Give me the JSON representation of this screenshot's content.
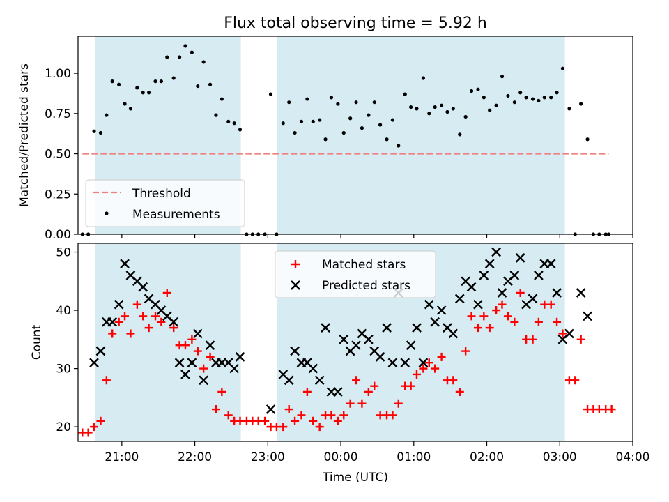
{
  "chart_data": [
    {
      "type": "scatter",
      "title": "Flux total observing time = 5.92 h",
      "xlabel": "",
      "ylabel": "Matched/Predicted stars",
      "x_unit": "hours since 00:00 UTC (negative = previous day)",
      "xlim": [
        -3.6,
        4.0
      ],
      "ylim": [
        0,
        1.23
      ],
      "yticks": [
        0.0,
        0.25,
        0.5,
        0.75,
        1.0
      ],
      "yticklabels": [
        "0.00",
        "0.25",
        "0.50",
        "0.75",
        "1.00"
      ],
      "shaded_intervals": [
        [
          -3.37,
          -1.37
        ],
        [
          -0.87,
          3.07
        ]
      ],
      "legend_placement": "lower-left",
      "threshold": {
        "name": "Threshold",
        "value": 0.5,
        "x_range": [
          -3.54,
          3.67
        ],
        "color": "#f08080"
      },
      "series": [
        {
          "name": "Measurements",
          "color": "#000000",
          "marker": "dot",
          "points": [
            [
              -3.54,
              0.0
            ],
            [
              -3.46,
              0.0
            ],
            [
              -3.38,
              0.64
            ],
            [
              -3.29,
              0.63
            ],
            [
              -3.21,
              0.74
            ],
            [
              -3.13,
              0.95
            ],
            [
              -3.04,
              0.93
            ],
            [
              -2.96,
              0.81
            ],
            [
              -2.88,
              0.78
            ],
            [
              -2.79,
              0.91
            ],
            [
              -2.71,
              0.88
            ],
            [
              -2.63,
              0.88
            ],
            [
              -2.54,
              0.95
            ],
            [
              -2.46,
              0.95
            ],
            [
              -2.38,
              1.1
            ],
            [
              -2.29,
              0.97
            ],
            [
              -2.21,
              1.1
            ],
            [
              -2.13,
              1.17
            ],
            [
              -2.04,
              1.13
            ],
            [
              -1.96,
              0.92
            ],
            [
              -1.88,
              1.07
            ],
            [
              -1.79,
              0.93
            ],
            [
              -1.71,
              0.74
            ],
            [
              -1.63,
              0.84
            ],
            [
              -1.54,
              0.7
            ],
            [
              -1.46,
              0.69
            ],
            [
              -1.38,
              0.65
            ],
            [
              -1.29,
              0.0
            ],
            [
              -1.21,
              0.0
            ],
            [
              -1.13,
              0.0
            ],
            [
              -1.04,
              0.0
            ],
            [
              -0.96,
              0.87
            ],
            [
              -0.88,
              0.0
            ],
            [
              -0.79,
              0.69
            ],
            [
              -0.71,
              0.82
            ],
            [
              -0.63,
              0.63
            ],
            [
              -0.54,
              0.7
            ],
            [
              -0.46,
              0.84
            ],
            [
              -0.38,
              0.7
            ],
            [
              -0.29,
              0.71
            ],
            [
              -0.21,
              0.59
            ],
            [
              -0.13,
              0.85
            ],
            [
              -0.04,
              0.81
            ],
            [
              0.04,
              0.63
            ],
            [
              0.13,
              0.72
            ],
            [
              0.21,
              0.82
            ],
            [
              0.29,
              0.66
            ],
            [
              0.38,
              0.74
            ],
            [
              0.46,
              0.82
            ],
            [
              0.54,
              0.68
            ],
            [
              0.63,
              0.59
            ],
            [
              0.71,
              0.71
            ],
            [
              0.79,
              0.55
            ],
            [
              0.88,
              0.87
            ],
            [
              0.96,
              0.79
            ],
            [
              1.04,
              0.78
            ],
            [
              1.13,
              0.97
            ],
            [
              1.21,
              0.75
            ],
            [
              1.29,
              0.79
            ],
            [
              1.38,
              0.8
            ],
            [
              1.46,
              0.76
            ],
            [
              1.54,
              0.78
            ],
            [
              1.63,
              0.62
            ],
            [
              1.71,
              0.73
            ],
            [
              1.79,
              0.89
            ],
            [
              1.88,
              0.9
            ],
            [
              1.96,
              0.85
            ],
            [
              2.04,
              0.77
            ],
            [
              2.13,
              0.8
            ],
            [
              2.21,
              0.98
            ],
            [
              2.29,
              0.86
            ],
            [
              2.38,
              0.82
            ],
            [
              2.46,
              0.88
            ],
            [
              2.54,
              0.85
            ],
            [
              2.63,
              0.84
            ],
            [
              2.71,
              0.83
            ],
            [
              2.79,
              0.85
            ],
            [
              2.88,
              0.85
            ],
            [
              2.96,
              0.88
            ],
            [
              3.04,
              1.03
            ],
            [
              3.13,
              0.78
            ],
            [
              3.21,
              0.0
            ],
            [
              3.29,
              0.81
            ],
            [
              3.38,
              0.59
            ],
            [
              3.46,
              0.0
            ],
            [
              3.54,
              0.0
            ],
            [
              3.63,
              0.0
            ],
            [
              3.67,
              0.0
            ]
          ]
        }
      ]
    },
    {
      "type": "scatter",
      "title": "",
      "xlabel": "Time (UTC)",
      "ylabel": "Count",
      "x_unit": "hours since 00:00 UTC (negative = previous day)",
      "xlim": [
        -3.6,
        4.0
      ],
      "ylim": [
        17.5,
        51.5
      ],
      "xticks": [
        -3,
        -2,
        -1,
        0,
        1,
        2,
        3,
        4
      ],
      "xticklabels": [
        "21:00",
        "22:00",
        "23:00",
        "00:00",
        "01:00",
        "02:00",
        "03:00",
        "04:00"
      ],
      "yticks": [
        20,
        30,
        40,
        50
      ],
      "yticklabels": [
        "20",
        "30",
        "40",
        "50"
      ],
      "shaded_intervals": [
        [
          -3.37,
          -1.37
        ],
        [
          -0.87,
          3.07
        ]
      ],
      "legend_placement": "top-center",
      "series": [
        {
          "name": "Matched stars",
          "color": "#ff0000",
          "marker": "plus",
          "points": [
            [
              -3.54,
              19
            ],
            [
              -3.46,
              19
            ],
            [
              -3.38,
              20
            ],
            [
              -3.29,
              21
            ],
            [
              -3.21,
              28
            ],
            [
              -3.13,
              36
            ],
            [
              -3.04,
              38
            ],
            [
              -2.96,
              39
            ],
            [
              -2.88,
              36
            ],
            [
              -2.79,
              41
            ],
            [
              -2.71,
              39
            ],
            [
              -2.63,
              37
            ],
            [
              -2.54,
              39
            ],
            [
              -2.46,
              38
            ],
            [
              -2.38,
              43
            ],
            [
              -2.29,
              37
            ],
            [
              -2.21,
              34
            ],
            [
              -2.13,
              34
            ],
            [
              -2.04,
              35
            ],
            [
              -1.96,
              33
            ],
            [
              -1.88,
              30
            ],
            [
              -1.79,
              32
            ],
            [
              -1.71,
              23
            ],
            [
              -1.63,
              26
            ],
            [
              -1.54,
              22
            ],
            [
              -1.46,
              21
            ],
            [
              -1.38,
              21
            ],
            [
              -1.29,
              21
            ],
            [
              -1.21,
              21
            ],
            [
              -1.13,
              21
            ],
            [
              -1.04,
              21
            ],
            [
              -0.96,
              20
            ],
            [
              -0.88,
              20
            ],
            [
              -0.79,
              20
            ],
            [
              -0.71,
              23
            ],
            [
              -0.63,
              21
            ],
            [
              -0.54,
              22
            ],
            [
              -0.46,
              26
            ],
            [
              -0.38,
              21
            ],
            [
              -0.29,
              20
            ],
            [
              -0.21,
              22
            ],
            [
              -0.13,
              22
            ],
            [
              -0.04,
              21
            ],
            [
              0.04,
              22
            ],
            [
              0.13,
              24
            ],
            [
              0.21,
              28
            ],
            [
              0.29,
              24
            ],
            [
              0.38,
              26
            ],
            [
              0.46,
              27
            ],
            [
              0.54,
              22
            ],
            [
              0.63,
              22
            ],
            [
              0.71,
              22
            ],
            [
              0.79,
              24
            ],
            [
              0.88,
              27
            ],
            [
              0.96,
              27
            ],
            [
              1.04,
              29
            ],
            [
              1.13,
              30
            ],
            [
              1.21,
              31
            ],
            [
              1.29,
              30
            ],
            [
              1.38,
              32
            ],
            [
              1.46,
              28
            ],
            [
              1.54,
              28
            ],
            [
              1.63,
              26
            ],
            [
              1.71,
              33
            ],
            [
              1.79,
              39
            ],
            [
              1.88,
              37
            ],
            [
              1.96,
              39
            ],
            [
              2.04,
              37
            ],
            [
              2.13,
              40
            ],
            [
              2.21,
              41
            ],
            [
              2.29,
              39
            ],
            [
              2.38,
              38
            ],
            [
              2.46,
              43
            ],
            [
              2.54,
              35
            ],
            [
              2.63,
              35
            ],
            [
              2.71,
              38
            ],
            [
              2.79,
              41
            ],
            [
              2.88,
              41
            ],
            [
              2.96,
              38
            ],
            [
              3.04,
              36
            ],
            [
              3.13,
              28
            ],
            [
              3.21,
              28
            ],
            [
              3.29,
              35
            ],
            [
              3.38,
              23
            ],
            [
              3.46,
              23
            ],
            [
              3.54,
              23
            ],
            [
              3.63,
              23
            ],
            [
              3.71,
              23
            ]
          ]
        },
        {
          "name": "Predicted stars",
          "color": "#000000",
          "marker": "x",
          "points": [
            [
              -3.38,
              31
            ],
            [
              -3.29,
              33
            ],
            [
              -3.21,
              38
            ],
            [
              -3.13,
              38
            ],
            [
              -3.04,
              41
            ],
            [
              -2.96,
              48
            ],
            [
              -2.88,
              46
            ],
            [
              -2.79,
              45
            ],
            [
              -2.71,
              44
            ],
            [
              -2.63,
              42
            ],
            [
              -2.54,
              41
            ],
            [
              -2.46,
              40
            ],
            [
              -2.38,
              39
            ],
            [
              -2.29,
              38
            ],
            [
              -2.21,
              31
            ],
            [
              -2.13,
              29
            ],
            [
              -2.04,
              31
            ],
            [
              -1.96,
              36
            ],
            [
              -1.88,
              28
            ],
            [
              -1.79,
              34
            ],
            [
              -1.71,
              31
            ],
            [
              -1.63,
              31
            ],
            [
              -1.54,
              31
            ],
            [
              -1.46,
              30
            ],
            [
              -1.38,
              32
            ],
            [
              -0.96,
              23
            ],
            [
              -0.79,
              29
            ],
            [
              -0.71,
              28
            ],
            [
              -0.63,
              33
            ],
            [
              -0.54,
              31
            ],
            [
              -0.46,
              31
            ],
            [
              -0.38,
              30
            ],
            [
              -0.29,
              28
            ],
            [
              -0.21,
              37
            ],
            [
              -0.13,
              26
            ],
            [
              -0.04,
              26
            ],
            [
              0.04,
              35
            ],
            [
              0.13,
              33
            ],
            [
              0.21,
              34
            ],
            [
              0.29,
              36
            ],
            [
              0.38,
              35
            ],
            [
              0.46,
              33
            ],
            [
              0.54,
              32
            ],
            [
              0.63,
              37
            ],
            [
              0.71,
              31
            ],
            [
              0.79,
              43
            ],
            [
              0.88,
              31
            ],
            [
              0.96,
              34
            ],
            [
              1.04,
              37
            ],
            [
              1.13,
              31
            ],
            [
              1.21,
              41
            ],
            [
              1.29,
              38
            ],
            [
              1.38,
              40
            ],
            [
              1.46,
              37
            ],
            [
              1.54,
              36
            ],
            [
              1.63,
              42
            ],
            [
              1.71,
              45
            ],
            [
              1.79,
              44
            ],
            [
              1.88,
              41
            ],
            [
              1.96,
              46
            ],
            [
              2.04,
              48
            ],
            [
              2.13,
              50
            ],
            [
              2.21,
              43
            ],
            [
              2.29,
              45
            ],
            [
              2.38,
              46
            ],
            [
              2.46,
              49
            ],
            [
              2.54,
              41
            ],
            [
              2.63,
              42
            ],
            [
              2.71,
              46
            ],
            [
              2.79,
              48
            ],
            [
              2.88,
              48
            ],
            [
              2.96,
              43
            ],
            [
              3.04,
              35
            ],
            [
              3.13,
              36
            ],
            [
              3.29,
              43
            ],
            [
              3.38,
              39
            ]
          ]
        }
      ]
    }
  ]
}
